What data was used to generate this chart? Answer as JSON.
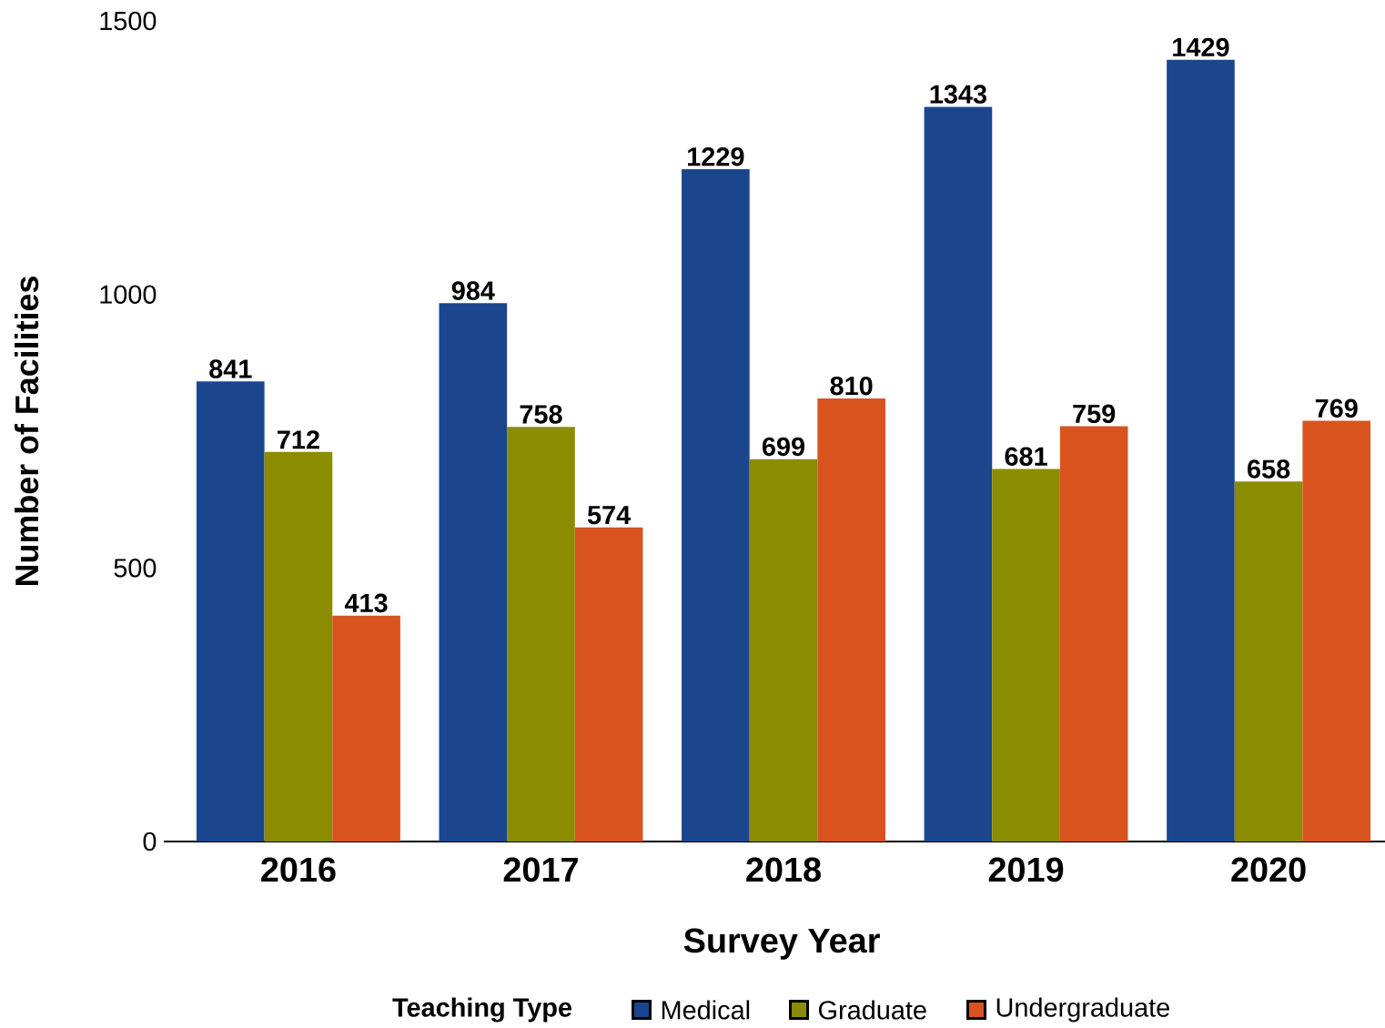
{
  "chart_data": {
    "type": "bar",
    "xlabel": "Survey Year",
    "ylabel": "Number of Facilities",
    "legend_title": "Teaching Type",
    "categories": [
      "2016",
      "2017",
      "2018",
      "2019",
      "2020"
    ],
    "series": [
      {
        "name": "Medical",
        "color": "#1a468e",
        "values": [
          841,
          984,
          1229,
          1343,
          1429
        ]
      },
      {
        "name": "Graduate",
        "color": "#8c8c00",
        "values": [
          712,
          758,
          699,
          681,
          658
        ]
      },
      {
        "name": "Undergraduate",
        "color": "#d9531e",
        "values": [
          413,
          574,
          810,
          759,
          769
        ]
      }
    ],
    "ylim": [
      0,
      1500
    ],
    "yticks": [
      0,
      500,
      1000,
      1500
    ],
    "data_labels": true,
    "legend": "bottom"
  }
}
